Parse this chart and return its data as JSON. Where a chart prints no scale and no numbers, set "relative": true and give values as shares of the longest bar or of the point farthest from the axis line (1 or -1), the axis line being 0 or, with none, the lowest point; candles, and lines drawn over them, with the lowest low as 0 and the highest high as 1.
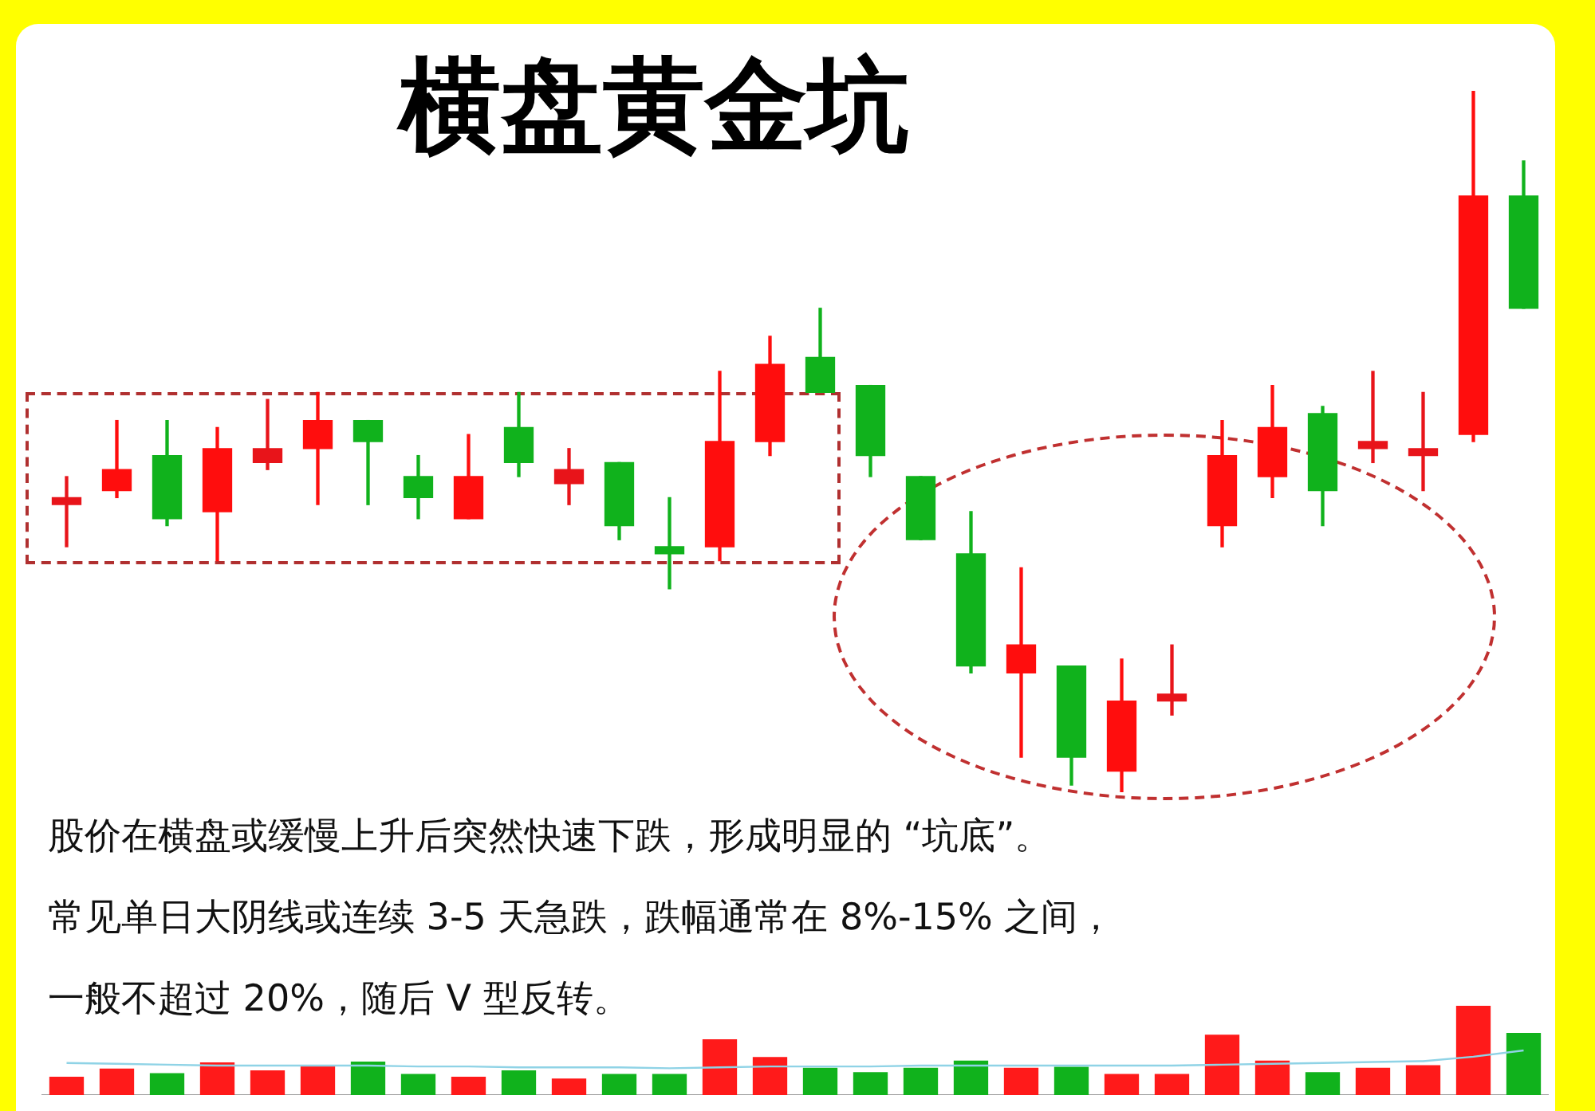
{
  "chart_data": [
    {
      "type": "candlestick",
      "title": "横盘黄金坑",
      "relative": true,
      "categories": [
        null,
        null,
        null,
        null,
        null,
        null,
        null,
        null,
        null,
        null,
        null,
        null,
        null,
        null,
        null,
        null,
        null,
        null,
        null,
        null,
        null,
        null,
        null,
        null,
        null,
        null,
        null,
        null,
        null,
        null
      ],
      "ohlc": [
        [
          0.41,
          0.45,
          0.35,
          0.42
        ],
        [
          0.43,
          0.53,
          0.42,
          0.46
        ],
        [
          0.48,
          0.53,
          0.38,
          0.39
        ],
        [
          0.4,
          0.52,
          0.33,
          0.49
        ],
        [
          0.47,
          0.56,
          0.46,
          0.49
        ],
        [
          0.49,
          0.57,
          0.41,
          0.53
        ],
        [
          0.53,
          0.53,
          0.41,
          0.5
        ],
        [
          0.45,
          0.48,
          0.39,
          0.42
        ],
        [
          0.39,
          0.51,
          0.39,
          0.45
        ],
        [
          0.52,
          0.57,
          0.45,
          0.47
        ],
        [
          0.44,
          0.49,
          0.41,
          0.46
        ],
        [
          0.47,
          0.47,
          0.36,
          0.38
        ],
        [
          0.35,
          0.42,
          0.29,
          0.34
        ],
        [
          0.35,
          0.6,
          0.33,
          0.5
        ],
        [
          0.5,
          0.65,
          0.48,
          0.61
        ],
        [
          0.62,
          0.69,
          0.57,
          0.57
        ],
        [
          0.58,
          0.58,
          0.45,
          0.48
        ],
        [
          0.45,
          0.45,
          0.36,
          0.36
        ],
        [
          0.34,
          0.4,
          0.17,
          0.18
        ],
        [
          0.17,
          0.32,
          0.05,
          0.21
        ],
        [
          0.18,
          0.18,
          0.01,
          0.05
        ],
        [
          0.03,
          0.19,
          0,
          0.13
        ],
        [
          0.13,
          0.21,
          0.11,
          0.14
        ],
        [
          0.38,
          0.53,
          0.35,
          0.48
        ],
        [
          0.45,
          0.58,
          0.42,
          0.52
        ],
        [
          0.54,
          0.55,
          0.38,
          0.43
        ],
        [
          0.49,
          0.6,
          0.47,
          0.5
        ],
        [
          0.48,
          0.57,
          0.43,
          0.49
        ],
        [
          0.51,
          1,
          0.5,
          0.85
        ],
        [
          0.85,
          0.9,
          0.69,
          0.69
        ]
      ],
      "colors": [
        "#e8141a",
        "#ff0d0d",
        "#10b21c",
        "#ff0d0d",
        "#e8141a",
        "#ff0d0d",
        "#10b21c",
        "#10b21c",
        "#ff0d0d",
        "#10b21c",
        "#e8141a",
        "#10b21c",
        "#10b21c",
        "#ff0d0d",
        "#ff0d0d",
        "#10b21c",
        "#10b21c",
        "#10b21c",
        "#10b21c",
        "#ff0d0d",
        "#10b21c",
        "#ff0d0d",
        "#e8141a",
        "#ff0d0d",
        "#ff0d0d",
        "#10b21c",
        "#e8141a",
        "#e8141a",
        "#ff0d0d",
        "#10b21c"
      ],
      "annotations": [
        "股价在横盘或缓慢上升后突然快速下跌，形成明显的 “坑底”。",
        "常见单日大阴线或连续 3-5 天急跌，跌幅通常在 8%-15% 之间，",
        "一般不超过 20%，随后 V 型反转。"
      ],
      "legend": false
    },
    {
      "type": "bar",
      "relative": true,
      "categories": [
        null,
        null,
        null,
        null,
        null,
        null,
        null,
        null,
        null,
        null,
        null,
        null,
        null,
        null,
        null,
        null,
        null,
        null,
        null,
        null,
        null,
        null,
        null,
        null,
        null,
        null,
        null,
        null,
        null,
        null
      ],
      "series": [
        {
          "type": "bar",
          "colors": [
            "#ff1a1a",
            "#ff1a1a",
            "#10b21c",
            "#ff1a1a",
            "#ff1a1a",
            "#ff1a1a",
            "#10b21c",
            "#10b21c",
            "#ff1a1a",
            "#10b21c",
            "#ff1a1a",
            "#10b21c",
            "#10b21c",
            "#ff1a1a",
            "#ff1a1a",
            "#10b21c",
            "#10b21c",
            "#10b21c",
            "#10b21c",
            "#ff1a1a",
            "#10b21c",
            "#ff1a1a",
            "#ff1a1a",
            "#ff1a1a",
            "#ff1a1a",
            "#10b21c",
            "#ff1a1a",
            "#ff1a1a",
            "#ff1a1a",
            "#10b21c"
          ],
          "values": [
            0.2,
            0.29,
            0.24,
            0.36,
            0.27,
            0.33,
            0.37,
            0.23,
            0.2,
            0.27,
            0.18,
            0.23,
            0.23,
            0.62,
            0.42,
            0.3,
            0.25,
            0.3,
            0.38,
            0.3,
            0.31,
            0.23,
            0.23,
            0.67,
            0.38,
            0.25,
            0.3,
            0.33,
            1,
            0.69
          ]
        },
        {
          "type": "line",
          "color": "#8fd3e6",
          "values": [
            0.36,
            0.35,
            0.34,
            0.33,
            0.33,
            0.33,
            0.33,
            0.32,
            0.32,
            0.31,
            0.31,
            0.31,
            0.3,
            0.31,
            0.32,
            0.32,
            0.32,
            0.33,
            0.33,
            0.33,
            0.33,
            0.33,
            0.33,
            0.34,
            0.35,
            0.36,
            0.37,
            0.38,
            0.43,
            0.5
          ]
        }
      ]
    }
  ]
}
